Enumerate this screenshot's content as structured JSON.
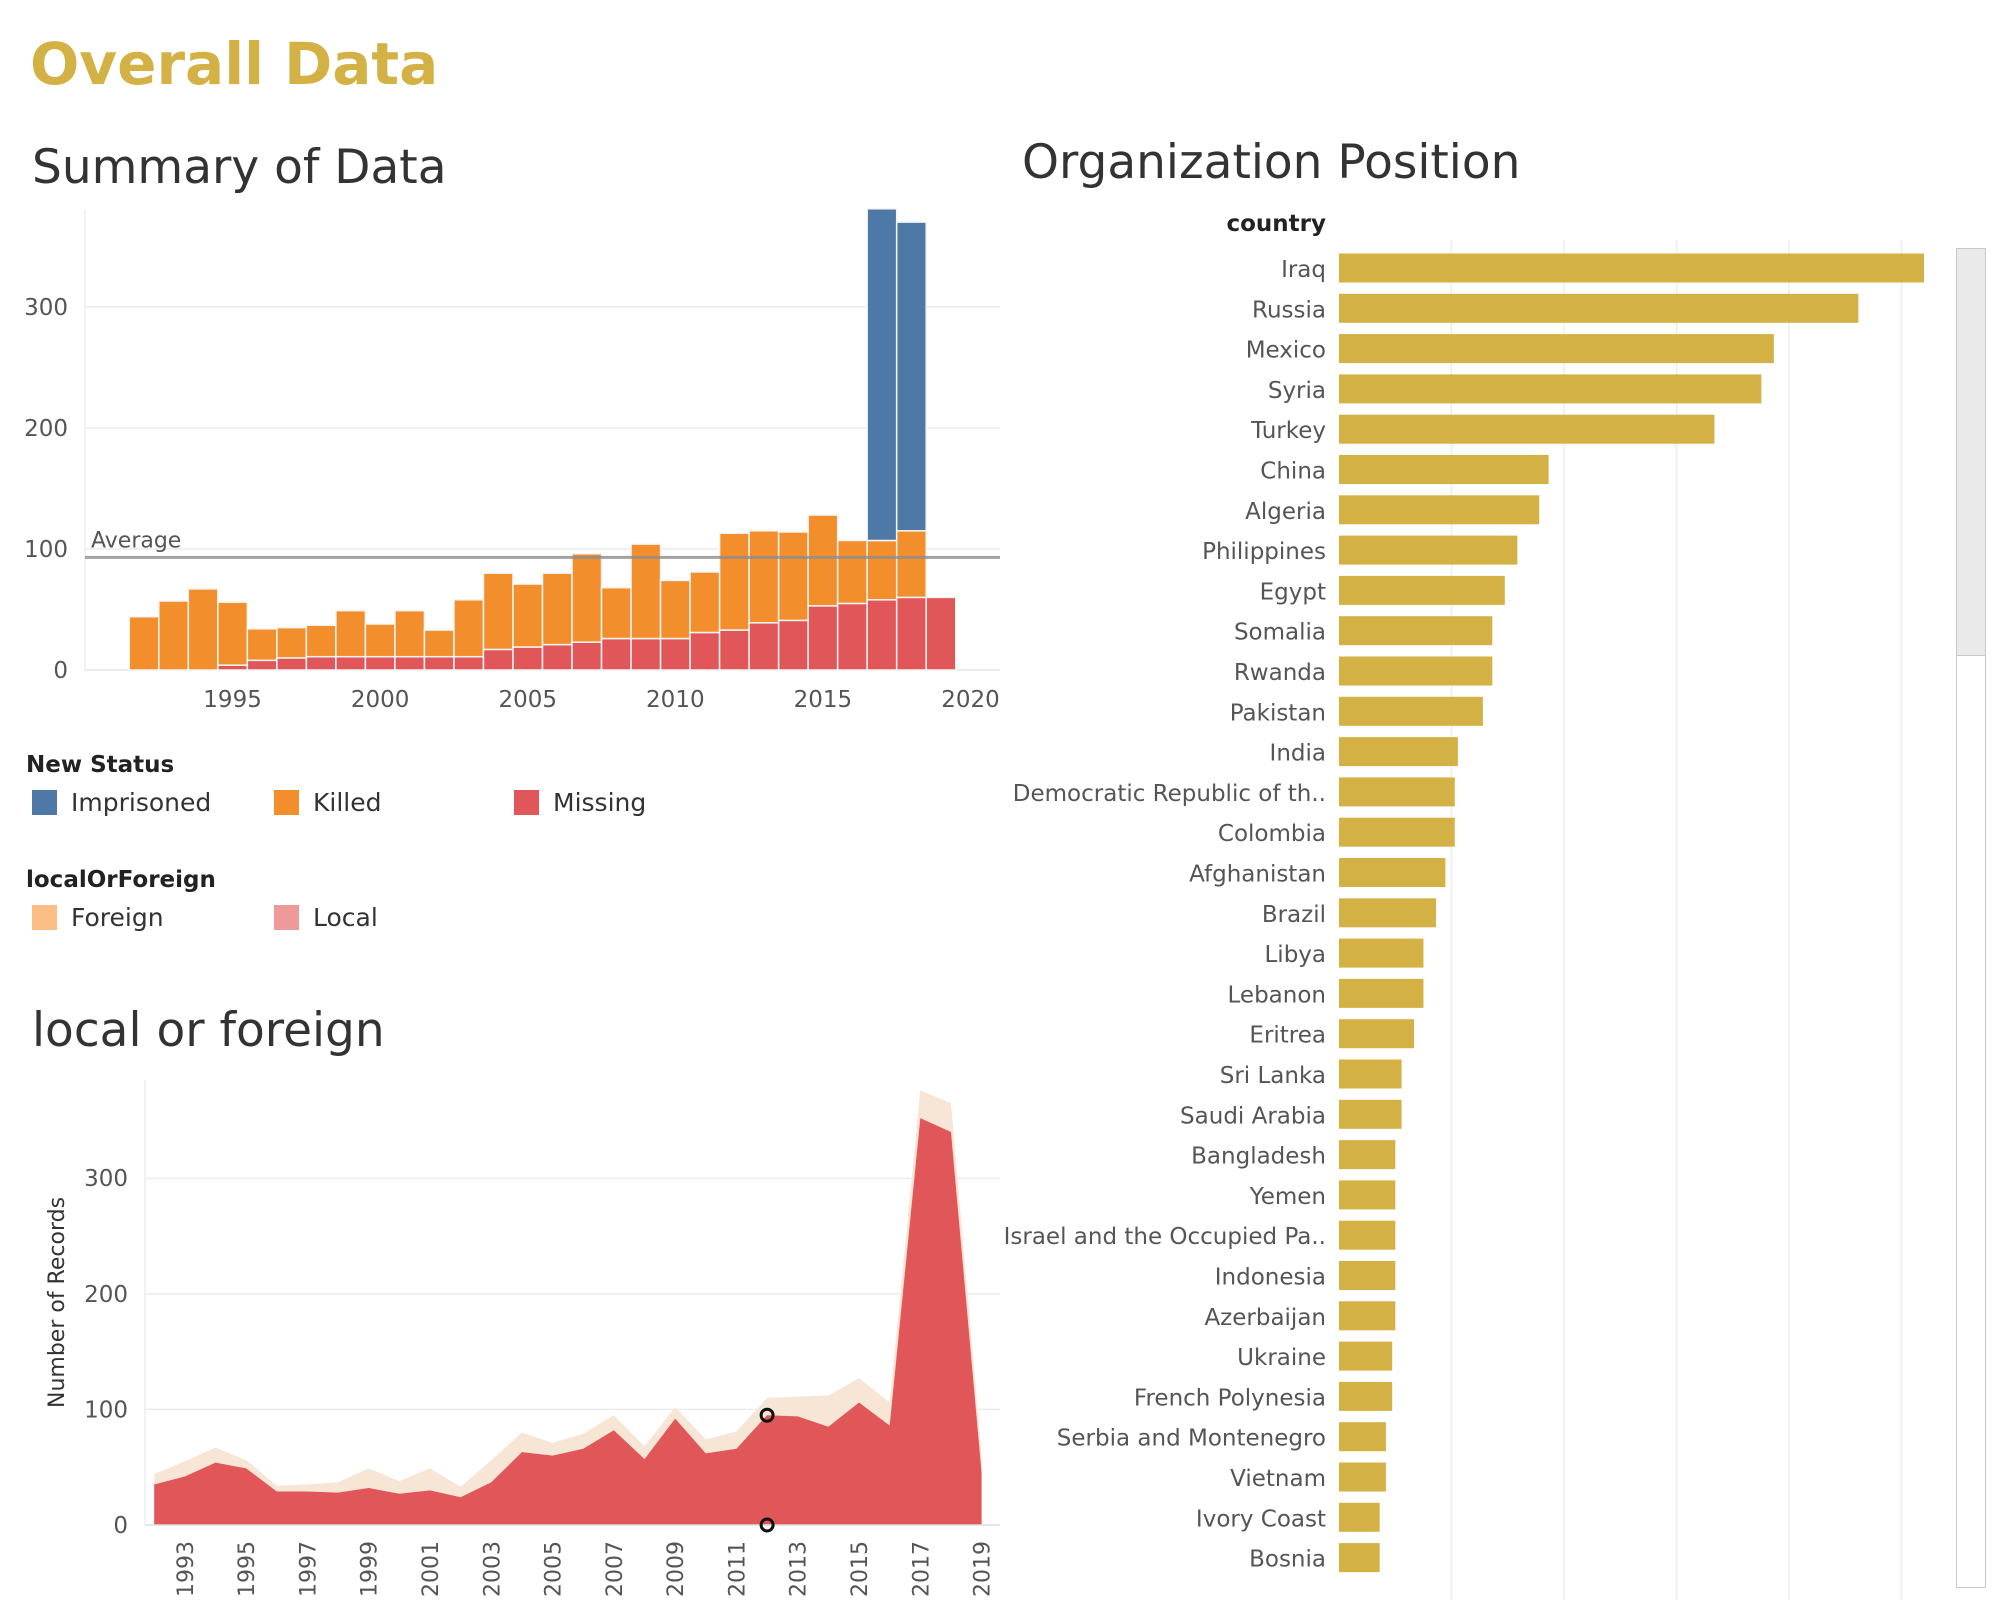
{
  "page": {
    "title": "Overall Data"
  },
  "summary": {
    "title": "Summary of Data",
    "reference_label": "Average",
    "legend_status": {
      "title": "New Status",
      "items": [
        {
          "label": "Imprisoned",
          "color": "#4e79a7"
        },
        {
          "label": "Killed",
          "color": "#f28e2b"
        },
        {
          "label": "Missing",
          "color": "#e15759"
        }
      ]
    },
    "legend_origin": {
      "title": "localOrForeign",
      "items": [
        {
          "label": "Foreign",
          "color": "#fbbf85"
        },
        {
          "label": "Local",
          "color": "#ef9a9a"
        }
      ]
    }
  },
  "localforeign": {
    "title": "local or foreign"
  },
  "organization": {
    "title": "Organization Position"
  },
  "chart_data": [
    {
      "type": "bar",
      "title": "Summary of Data",
      "stacked": true,
      "x": [
        1992,
        1993,
        1994,
        1995,
        1996,
        1997,
        1998,
        1999,
        2000,
        2001,
        2002,
        2003,
        2004,
        2005,
        2006,
        2007,
        2008,
        2009,
        2010,
        2011,
        2012,
        2013,
        2014,
        2015,
        2016,
        2017,
        2018,
        2019
      ],
      "series": [
        {
          "name": "Missing",
          "color": "#e15759",
          "values": [
            0,
            0,
            0,
            4,
            8,
            10,
            11,
            11,
            11,
            11,
            11,
            11,
            17,
            19,
            21,
            23,
            26,
            26,
            26,
            31,
            33,
            39,
            41,
            53,
            55,
            58,
            60,
            60
          ]
        },
        {
          "name": "Killed",
          "color": "#f28e2b",
          "values": [
            44,
            57,
            67,
            52,
            26,
            25,
            26,
            38,
            27,
            38,
            22,
            47,
            63,
            52,
            59,
            73,
            42,
            78,
            48,
            50,
            80,
            76,
            73,
            75,
            52,
            49,
            55,
            0
          ]
        },
        {
          "name": "Imprisoned",
          "color": "#4e79a7",
          "values": [
            0,
            0,
            0,
            0,
            0,
            0,
            0,
            0,
            0,
            0,
            0,
            0,
            0,
            0,
            0,
            0,
            0,
            0,
            0,
            0,
            0,
            0,
            0,
            0,
            0,
            274,
            255,
            0
          ]
        }
      ],
      "reference_line": {
        "label": "Average",
        "value": 93
      },
      "x_ticks": [
        1995,
        2000,
        2005,
        2010,
        2015,
        2020
      ],
      "y_ticks": [
        0,
        100,
        200,
        300
      ],
      "ylim": [
        0,
        380
      ],
      "grid": true
    },
    {
      "type": "area",
      "title": "local or foreign",
      "ylabel": "Number of Records",
      "stacked": true,
      "x": [
        1992,
        1993,
        1994,
        1995,
        1996,
        1997,
        1998,
        1999,
        2000,
        2001,
        2002,
        2003,
        2004,
        2005,
        2006,
        2007,
        2008,
        2009,
        2010,
        2011,
        2012,
        2013,
        2014,
        2015,
        2016,
        2017,
        2018,
        2019
      ],
      "series": [
        {
          "name": "Local",
          "color": "#e15759",
          "values": [
            35,
            42,
            54,
            49,
            29,
            29,
            28,
            32,
            27,
            30,
            24,
            37,
            63,
            60,
            66,
            82,
            57,
            92,
            62,
            66,
            95,
            94,
            85,
            106,
            86,
            352,
            340,
            45
          ]
        },
        {
          "name": "Foreign",
          "color": "#f7e5d5",
          "values": [
            9,
            13,
            13,
            7,
            5,
            6,
            9,
            17,
            11,
            19,
            9,
            19,
            17,
            11,
            13,
            13,
            11,
            10,
            12,
            15,
            15,
            17,
            27,
            21,
            20,
            24,
            25,
            15
          ]
        }
      ],
      "x_ticks": [
        1993,
        1995,
        1997,
        1999,
        2001,
        2003,
        2005,
        2007,
        2009,
        2011,
        2013,
        2015,
        2017,
        2019
      ],
      "y_ticks": [
        0,
        100,
        200,
        300
      ],
      "ylim": [
        0,
        385
      ],
      "grid": true,
      "highlighted_x": 2012
    },
    {
      "type": "bar",
      "orientation": "horizontal",
      "title": "Organization Position",
      "category_header": "country",
      "color": "#d4b145",
      "categories": [
        "Iraq",
        "Russia",
        "Mexico",
        "Syria",
        "Turkey",
        "China",
        "Algeria",
        "Philippines",
        "Egypt",
        "Somalia",
        "Rwanda",
        "Pakistan",
        "India",
        "Democratic Republic of th..",
        "Colombia",
        "Afghanistan",
        "Brazil",
        "Libya",
        "Lebanon",
        "Eritrea",
        "Sri Lanka",
        "Saudi Arabia",
        "Bangladesh",
        "Yemen",
        "Israel and the Occupied Pa..",
        "Indonesia",
        "Azerbaijan",
        "Ukraine",
        "French Polynesia",
        "Serbia and Montenegro",
        "Vietnam",
        "Ivory Coast",
        "Bosnia"
      ],
      "values": [
        187,
        166,
        139,
        135,
        120,
        67,
        64,
        57,
        53,
        49,
        49,
        46,
        38,
        37,
        37,
        34,
        31,
        27,
        27,
        24,
        20,
        20,
        18,
        18,
        18,
        18,
        18,
        17,
        17,
        15,
        15,
        13,
        13
      ]
    }
  ]
}
